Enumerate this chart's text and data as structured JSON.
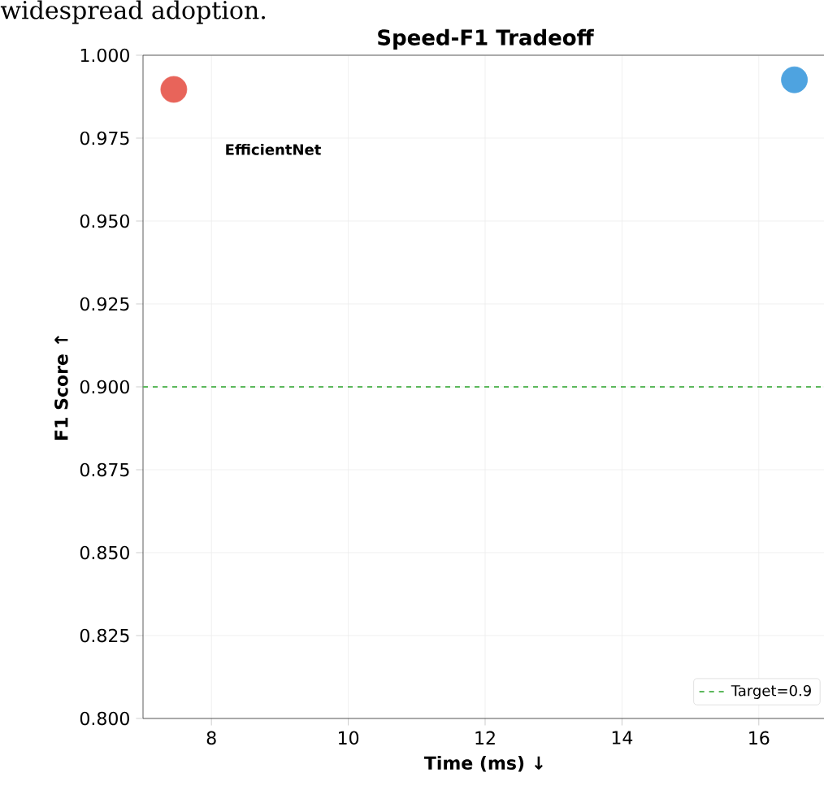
{
  "chart_data": {
    "type": "scatter",
    "title": "Speed-F1 Tradeoff",
    "xlabel": "Time (ms) ↓",
    "ylabel": "F1 Score ↑",
    "x": [
      7.45,
      16.52
    ],
    "series": [
      {
        "color": "#e8645a",
        "values": [
          0.9897,
          null
        ]
      },
      {
        "color": "#4ea3e0",
        "values": [
          null,
          0.9926
        ]
      }
    ],
    "xlim": [
      7,
      17
    ],
    "xticks": [
      8,
      10,
      12,
      14,
      16
    ],
    "ylim": [
      0.8,
      1.0
    ],
    "yticks": [
      {
        "value": 0.8,
        "label": "0.800"
      },
      {
        "value": 0.825,
        "label": "0.825"
      },
      {
        "value": 0.85,
        "label": "0.850"
      },
      {
        "value": 0.875,
        "label": "0.875"
      },
      {
        "value": 0.9,
        "label": "0.900"
      },
      {
        "value": 0.925,
        "label": "0.925"
      },
      {
        "value": 0.95,
        "label": "0.950"
      },
      {
        "value": 0.975,
        "label": "0.975"
      },
      {
        "value": 1.0,
        "label": "1.000"
      }
    ],
    "ref_lines": [
      {
        "axis": "y",
        "value": 0.9,
        "label": "Target=0.9",
        "color": "#5cb85c",
        "line_style": "dashed"
      }
    ],
    "annotations": [
      "widespread adoption.",
      "EfficientNet"
    ],
    "grid": true,
    "legend": "bottom right",
    "marker": "circle"
  }
}
